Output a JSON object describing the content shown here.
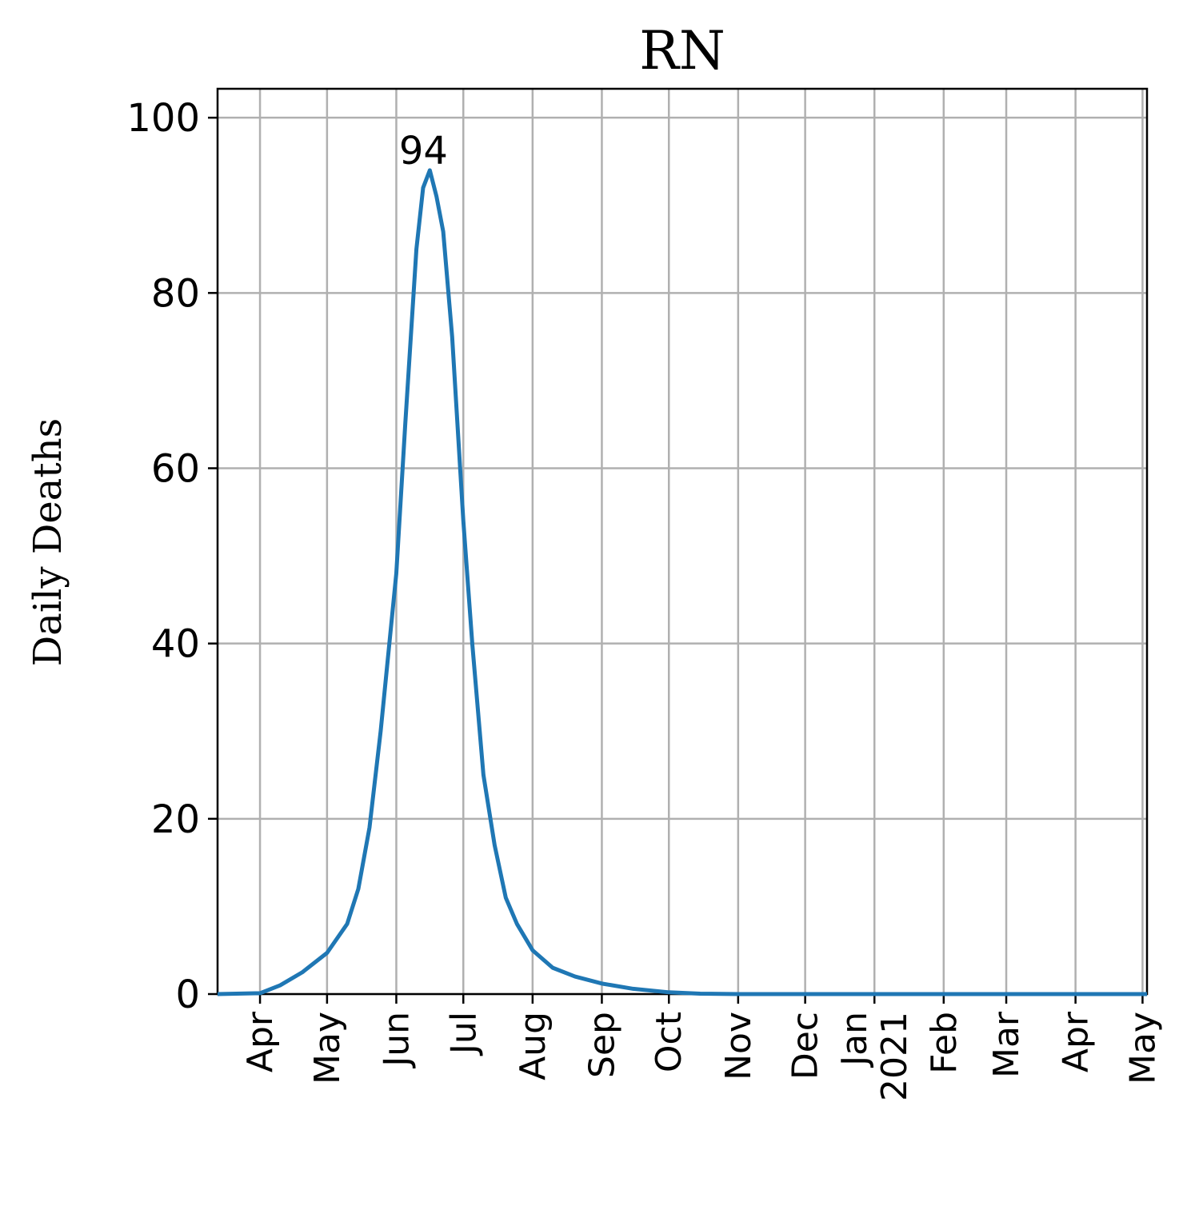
{
  "chart_data": {
    "type": "line",
    "title": "RN",
    "y_label": "Daily Deaths",
    "x": [
      "2020-03-13",
      "2020-04-01",
      "2020-04-10",
      "2020-04-20",
      "2020-05-01",
      "2020-05-10",
      "2020-05-15",
      "2020-05-20",
      "2020-05-25",
      "2020-06-01",
      "2020-06-05",
      "2020-06-10",
      "2020-06-13",
      "2020-06-16",
      "2020-06-19",
      "2020-06-22",
      "2020-06-26",
      "2020-07-01",
      "2020-07-05",
      "2020-07-10",
      "2020-07-15",
      "2020-07-20",
      "2020-07-25",
      "2020-08-01",
      "2020-08-10",
      "2020-08-20",
      "2020-09-01",
      "2020-09-15",
      "2020-10-01",
      "2020-10-15",
      "2020-11-01",
      "2021-05-03"
    ],
    "series": [
      {
        "name": "Daily Deaths",
        "color": "#1f77b4",
        "values": [
          0,
          0.1,
          1,
          2.5,
          4.7,
          8,
          12,
          19,
          30,
          48,
          65,
          85,
          92,
          94,
          91,
          87,
          75,
          54,
          40,
          25,
          17,
          11,
          8,
          5,
          3,
          2,
          1.2,
          0.6,
          0.2,
          0.05,
          0,
          0
        ]
      }
    ],
    "annotations": [
      {
        "x": "2020-06-16",
        "y": 94,
        "text": "94"
      }
    ],
    "xlim": [
      "2020-03-13",
      "2021-05-03"
    ],
    "xticks": [
      {
        "value": "2020-04-01",
        "label": "Apr"
      },
      {
        "value": "2020-05-01",
        "label": "May"
      },
      {
        "value": "2020-06-01",
        "label": "Jun"
      },
      {
        "value": "2020-07-01",
        "label": "Jul"
      },
      {
        "value": "2020-08-01",
        "label": "Aug"
      },
      {
        "value": "2020-09-01",
        "label": "Sep"
      },
      {
        "value": "2020-10-01",
        "label": "Oct"
      },
      {
        "value": "2020-11-01",
        "label": "Nov"
      },
      {
        "value": "2020-12-01",
        "label": "Dec"
      },
      {
        "value": "2021-01-01",
        "label": [
          "Jan",
          "2021"
        ]
      },
      {
        "value": "2021-02-01",
        "label": "Feb"
      },
      {
        "value": "2021-03-01",
        "label": "Mar"
      },
      {
        "value": "2021-04-01",
        "label": "Apr"
      },
      {
        "value": "2021-05-01",
        "label": "May"
      }
    ],
    "ylim": [
      0,
      103.3
    ],
    "yticks": [
      0,
      20,
      40,
      60,
      80,
      100
    ],
    "grid": true
  }
}
